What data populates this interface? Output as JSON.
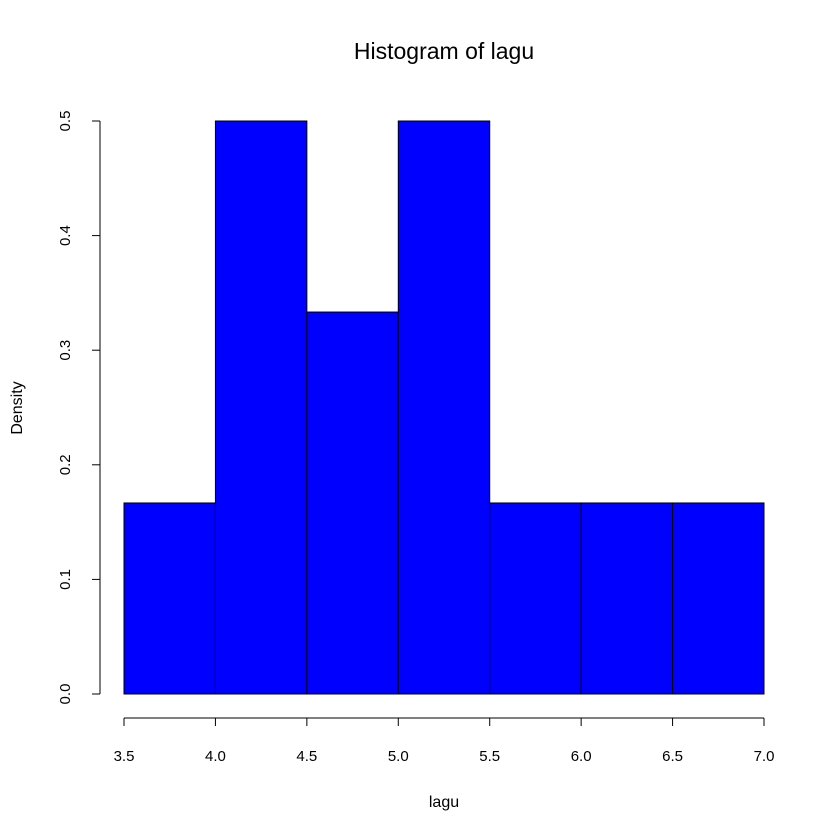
{
  "chart_data": {
    "type": "bar",
    "title": "Histogram of lagu",
    "xlabel": "lagu",
    "ylabel": "Density",
    "bins": [
      {
        "start": 3.5,
        "end": 4.0,
        "density": 0.1667
      },
      {
        "start": 4.0,
        "end": 4.5,
        "density": 0.5
      },
      {
        "start": 4.5,
        "end": 5.0,
        "density": 0.3333
      },
      {
        "start": 5.0,
        "end": 5.5,
        "density": 0.5
      },
      {
        "start": 5.5,
        "end": 6.0,
        "density": 0.1667
      },
      {
        "start": 6.0,
        "end": 6.5,
        "density": 0.1667
      },
      {
        "start": 6.5,
        "end": 7.0,
        "density": 0.1667
      }
    ],
    "xlim": [
      3.5,
      7.0
    ],
    "ylim": [
      0,
      0.5
    ],
    "xticks": [
      "3.5",
      "4.0",
      "4.5",
      "5.0",
      "5.5",
      "6.0",
      "6.5",
      "7.0"
    ],
    "yticks": [
      "0.0",
      "0.1",
      "0.2",
      "0.3",
      "0.4",
      "0.5"
    ],
    "grid": false,
    "bar_color": "#0000ff",
    "edge_color": "#000000"
  }
}
